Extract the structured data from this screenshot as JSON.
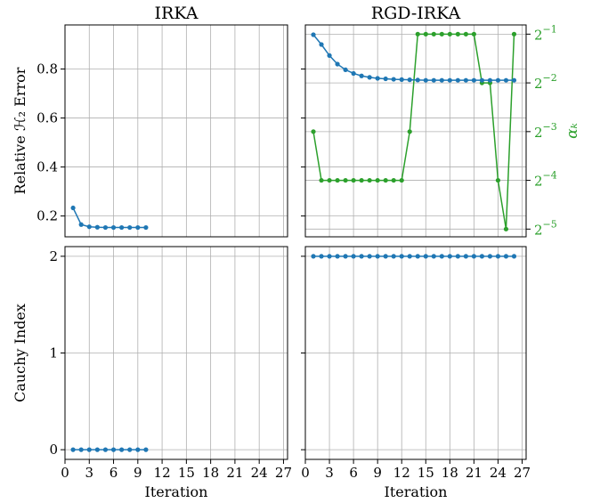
{
  "chart_data": [
    {
      "id": "irka-error",
      "type": "line",
      "title": "IRKA",
      "xlabel": "",
      "ylabel": "Relative ℋ₂ Error",
      "xlim": [
        0,
        27.5
      ],
      "ylim": [
        0.115,
        0.98
      ],
      "yticks": [
        0.2,
        0.4,
        0.6,
        0.8
      ],
      "ytick_labels": [
        "0.2",
        "0.4",
        "0.6",
        "0.8"
      ],
      "grid": true,
      "series": [
        {
          "color": "#1f77b4",
          "x": [
            1,
            2,
            3,
            4,
            5,
            6,
            7,
            8,
            9,
            10
          ],
          "values": [
            0.233,
            0.165,
            0.156,
            0.154,
            0.153,
            0.153,
            0.153,
            0.153,
            0.153,
            0.153
          ]
        }
      ]
    },
    {
      "id": "rgd-error",
      "type": "line",
      "title": "RGD-IRKA",
      "xlabel": "",
      "ylabel": "",
      "xlim": [
        0,
        27.5
      ],
      "ylim": [
        0.115,
        0.98
      ],
      "grid": true,
      "series": [
        {
          "color": "#1f77b4",
          "x": [
            1,
            2,
            3,
            4,
            5,
            6,
            7,
            8,
            9,
            10,
            11,
            12,
            13,
            14,
            15,
            16,
            17,
            18,
            19,
            20,
            21,
            22,
            23,
            24,
            25,
            26
          ],
          "values": [
            0.94,
            0.9,
            0.855,
            0.82,
            0.797,
            0.782,
            0.772,
            0.766,
            0.762,
            0.76,
            0.758,
            0.757,
            0.756,
            0.755,
            0.754,
            0.754,
            0.754,
            0.754,
            0.754,
            0.754,
            0.754,
            0.754,
            0.754,
            0.754,
            0.754,
            0.754
          ]
        }
      ],
      "right_axis": {
        "label": "αₖ",
        "scale": "log2",
        "ylim": [
          0.028,
          0.57
        ],
        "ticks": [
          0.03125,
          0.0625,
          0.125,
          0.25,
          0.5
        ],
        "tick_labels": [
          {
            "base": "2",
            "exp": "−5"
          },
          {
            "base": "2",
            "exp": "−4"
          },
          {
            "base": "2",
            "exp": "−3"
          },
          {
            "base": "2",
            "exp": "−2"
          },
          {
            "base": "2",
            "exp": "−1"
          }
        ],
        "series": [
          {
            "color": "#2ca02c",
            "x": [
              1,
              2,
              3,
              4,
              5,
              6,
              7,
              8,
              9,
              10,
              11,
              12,
              13,
              14,
              15,
              16,
              17,
              18,
              19,
              20,
              21,
              22,
              23,
              24,
              25,
              26
            ],
            "values": [
              0.125,
              0.0625,
              0.0625,
              0.0625,
              0.0625,
              0.0625,
              0.0625,
              0.0625,
              0.0625,
              0.0625,
              0.0625,
              0.0625,
              0.125,
              0.5,
              0.5,
              0.5,
              0.5,
              0.5,
              0.5,
              0.5,
              0.5,
              0.25,
              0.25,
              0.0625,
              0.03125,
              0.5
            ]
          }
        ]
      }
    },
    {
      "id": "irka-cauchy",
      "type": "line",
      "title": "",
      "xlabel": "Iteration",
      "ylabel": "Cauchy Index",
      "xlim": [
        0,
        27.5
      ],
      "ylim": [
        -0.1,
        2.1
      ],
      "xticks": [
        0,
        3,
        6,
        9,
        12,
        15,
        18,
        21,
        24,
        27
      ],
      "xtick_labels": [
        "0",
        "3",
        "6",
        "9",
        "12",
        "15",
        "18",
        "21",
        "24",
        "27"
      ],
      "yticks": [
        0,
        1,
        2
      ],
      "ytick_labels": [
        "0",
        "1",
        "2"
      ],
      "grid": true,
      "series": [
        {
          "color": "#1f77b4",
          "x": [
            1,
            2,
            3,
            4,
            5,
            6,
            7,
            8,
            9,
            10
          ],
          "values": [
            0,
            0,
            0,
            0,
            0,
            0,
            0,
            0,
            0,
            0
          ]
        }
      ]
    },
    {
      "id": "rgd-cauchy",
      "type": "line",
      "title": "",
      "xlabel": "Iteration",
      "ylabel": "",
      "xlim": [
        0,
        27.5
      ],
      "ylim": [
        -0.1,
        2.1
      ],
      "xticks": [
        0,
        3,
        6,
        9,
        12,
        15,
        18,
        21,
        24,
        27
      ],
      "xtick_labels": [
        "0",
        "3",
        "6",
        "9",
        "12",
        "15",
        "18",
        "21",
        "24",
        "27"
      ],
      "grid": true,
      "series": [
        {
          "color": "#1f77b4",
          "x": [
            1,
            2,
            3,
            4,
            5,
            6,
            7,
            8,
            9,
            10,
            11,
            12,
            13,
            14,
            15,
            16,
            17,
            18,
            19,
            20,
            21,
            22,
            23,
            24,
            25,
            26
          ],
          "values": [
            2,
            2,
            2,
            2,
            2,
            2,
            2,
            2,
            2,
            2,
            2,
            2,
            2,
            2,
            2,
            2,
            2,
            2,
            2,
            2,
            2,
            2,
            2,
            2,
            2,
            2
          ]
        }
      ]
    }
  ]
}
